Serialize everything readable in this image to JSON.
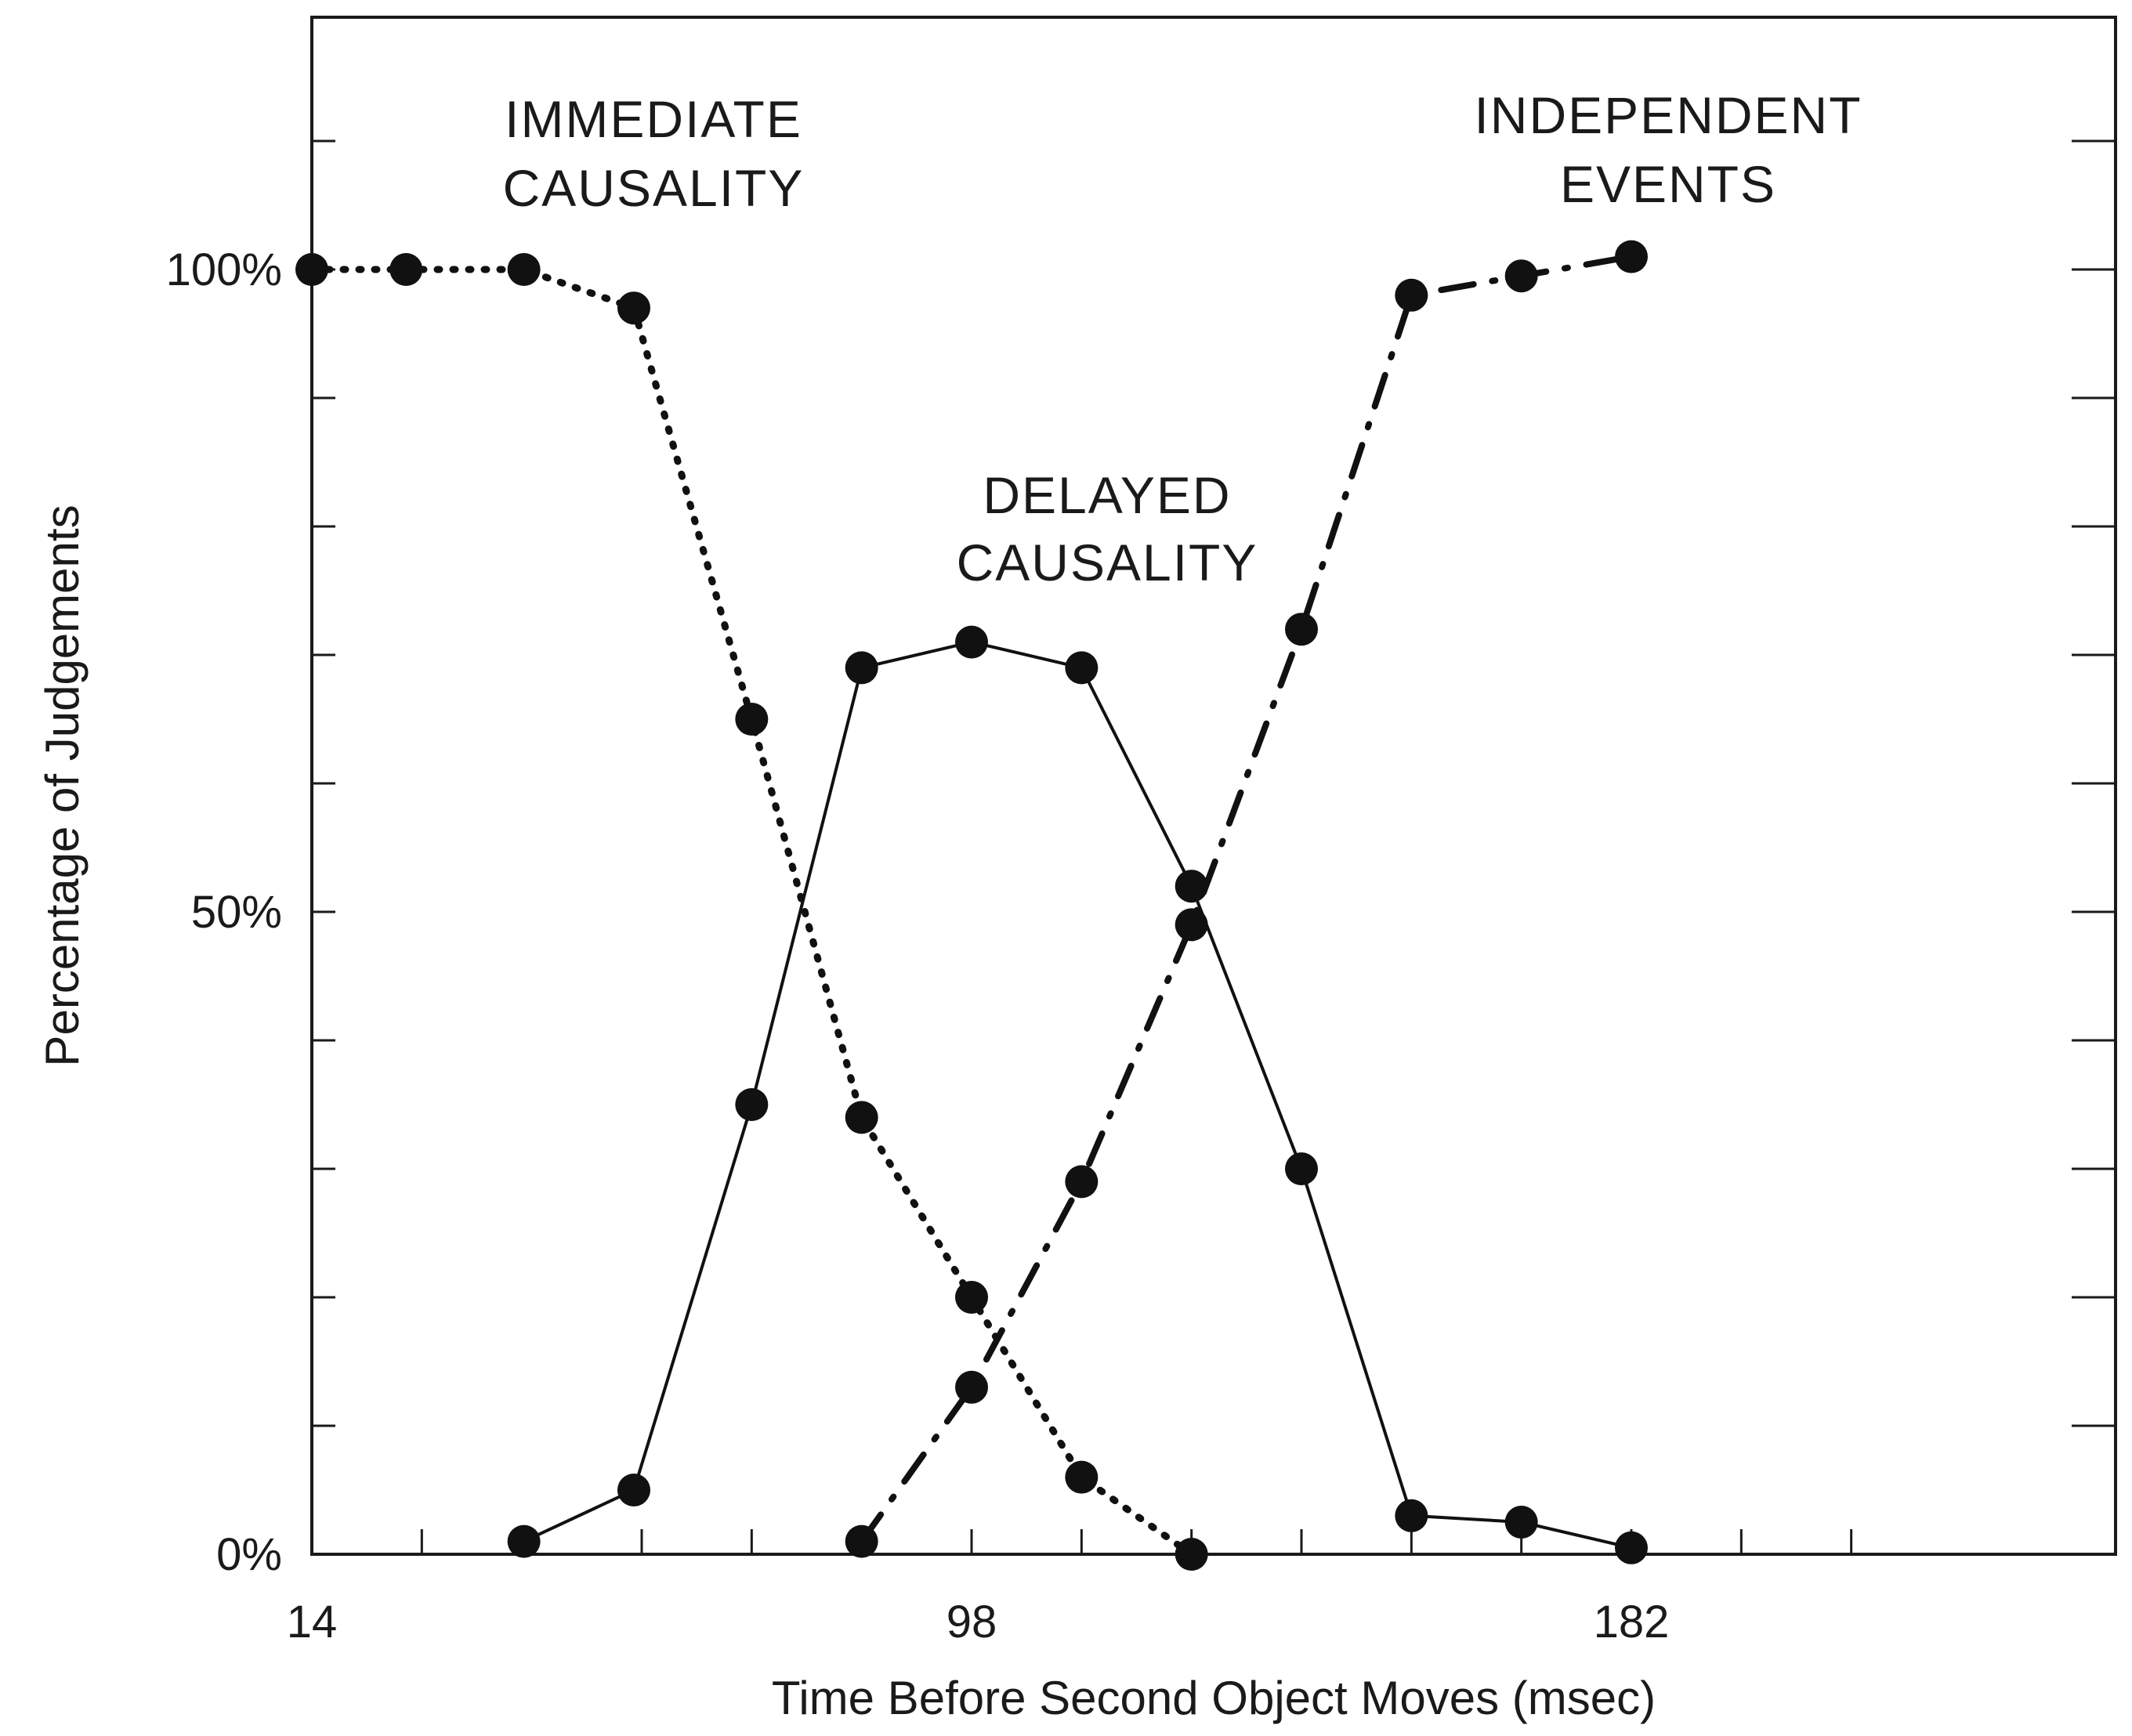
{
  "chart_data": {
    "type": "line",
    "xlabel": "Time Before Second Object Moves (msec)",
    "ylabel": "Percentage of Judgements",
    "xlim": [
      14,
      224
    ],
    "ylim": [
      0,
      100
    ],
    "xticks": [
      14,
      28,
      42,
      56,
      70,
      84,
      98,
      112,
      126,
      140,
      154,
      168,
      182,
      196,
      210
    ],
    "xtick_labels": [
      "14",
      "98",
      "182"
    ],
    "yticks": [
      0,
      10,
      20,
      30,
      40,
      50,
      60,
      70,
      80,
      90,
      100,
      110
    ],
    "ytick_labels": [
      "0%",
      "50%",
      "100%"
    ],
    "grid": false,
    "annotations": [
      {
        "lines": [
          "IMMEDIATE",
          "CAUSALITY"
        ]
      },
      {
        "lines": [
          "DELAYED",
          "CAUSALITY"
        ]
      },
      {
        "lines": [
          "INDEPENDENT",
          "EVENTS"
        ]
      }
    ],
    "series": [
      {
        "style": "dotted",
        "x": [
          14,
          26,
          41,
          55,
          70,
          84,
          98,
          112,
          126
        ],
        "y": [
          100,
          100,
          100,
          97,
          65,
          34,
          20,
          6,
          0
        ]
      },
      {
        "style": "solid",
        "x": [
          41,
          55,
          70,
          84,
          98,
          112,
          126,
          140,
          154,
          168,
          182
        ],
        "y": [
          1,
          5,
          35,
          69,
          71,
          69,
          52,
          30,
          3,
          2.5,
          0.5
        ]
      },
      {
        "style": "dash-dot",
        "x": [
          84,
          98,
          112,
          126,
          140,
          154,
          168,
          182
        ],
        "y": [
          1,
          13,
          29,
          49,
          72,
          98,
          99.5,
          101
        ]
      }
    ]
  }
}
